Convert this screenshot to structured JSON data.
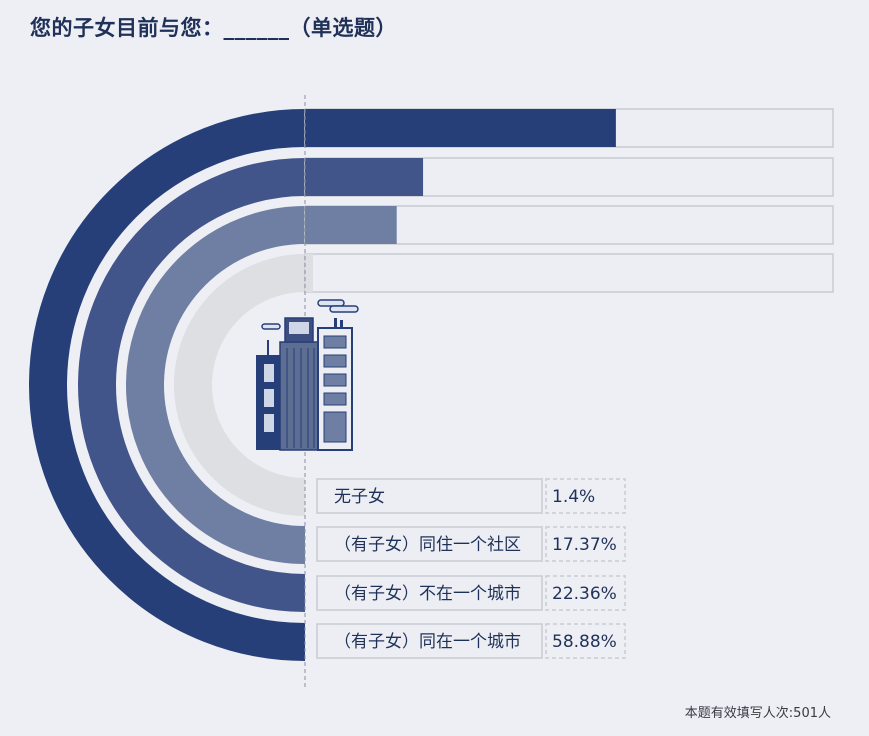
{
  "title": "您的子女目前与您：______（单选题）",
  "footer": "本题有效填写人次:501人",
  "colors": {
    "background": "#eeeff4",
    "track": "#eceef3",
    "track_border": "#c9ccd3",
    "label_text": "#1f3158"
  },
  "chart_data": {
    "type": "bar",
    "style": "radial half-ring bars with horizontal extensions",
    "value_unit": "%",
    "max": 100,
    "categories": [
      "（有子女）同在一个城市",
      "（有子女）不在一个城市",
      "（有子女）同住一个社区",
      "无子女"
    ],
    "values": [
      58.88,
      22.36,
      17.37,
      1.4
    ],
    "labels": [
      "58.88%",
      "22.36%",
      "17.37%",
      "1.4%"
    ],
    "bar_colors": [
      "#273f78",
      "#42558a",
      "#6e7fa3",
      "#dedfe2"
    ]
  }
}
